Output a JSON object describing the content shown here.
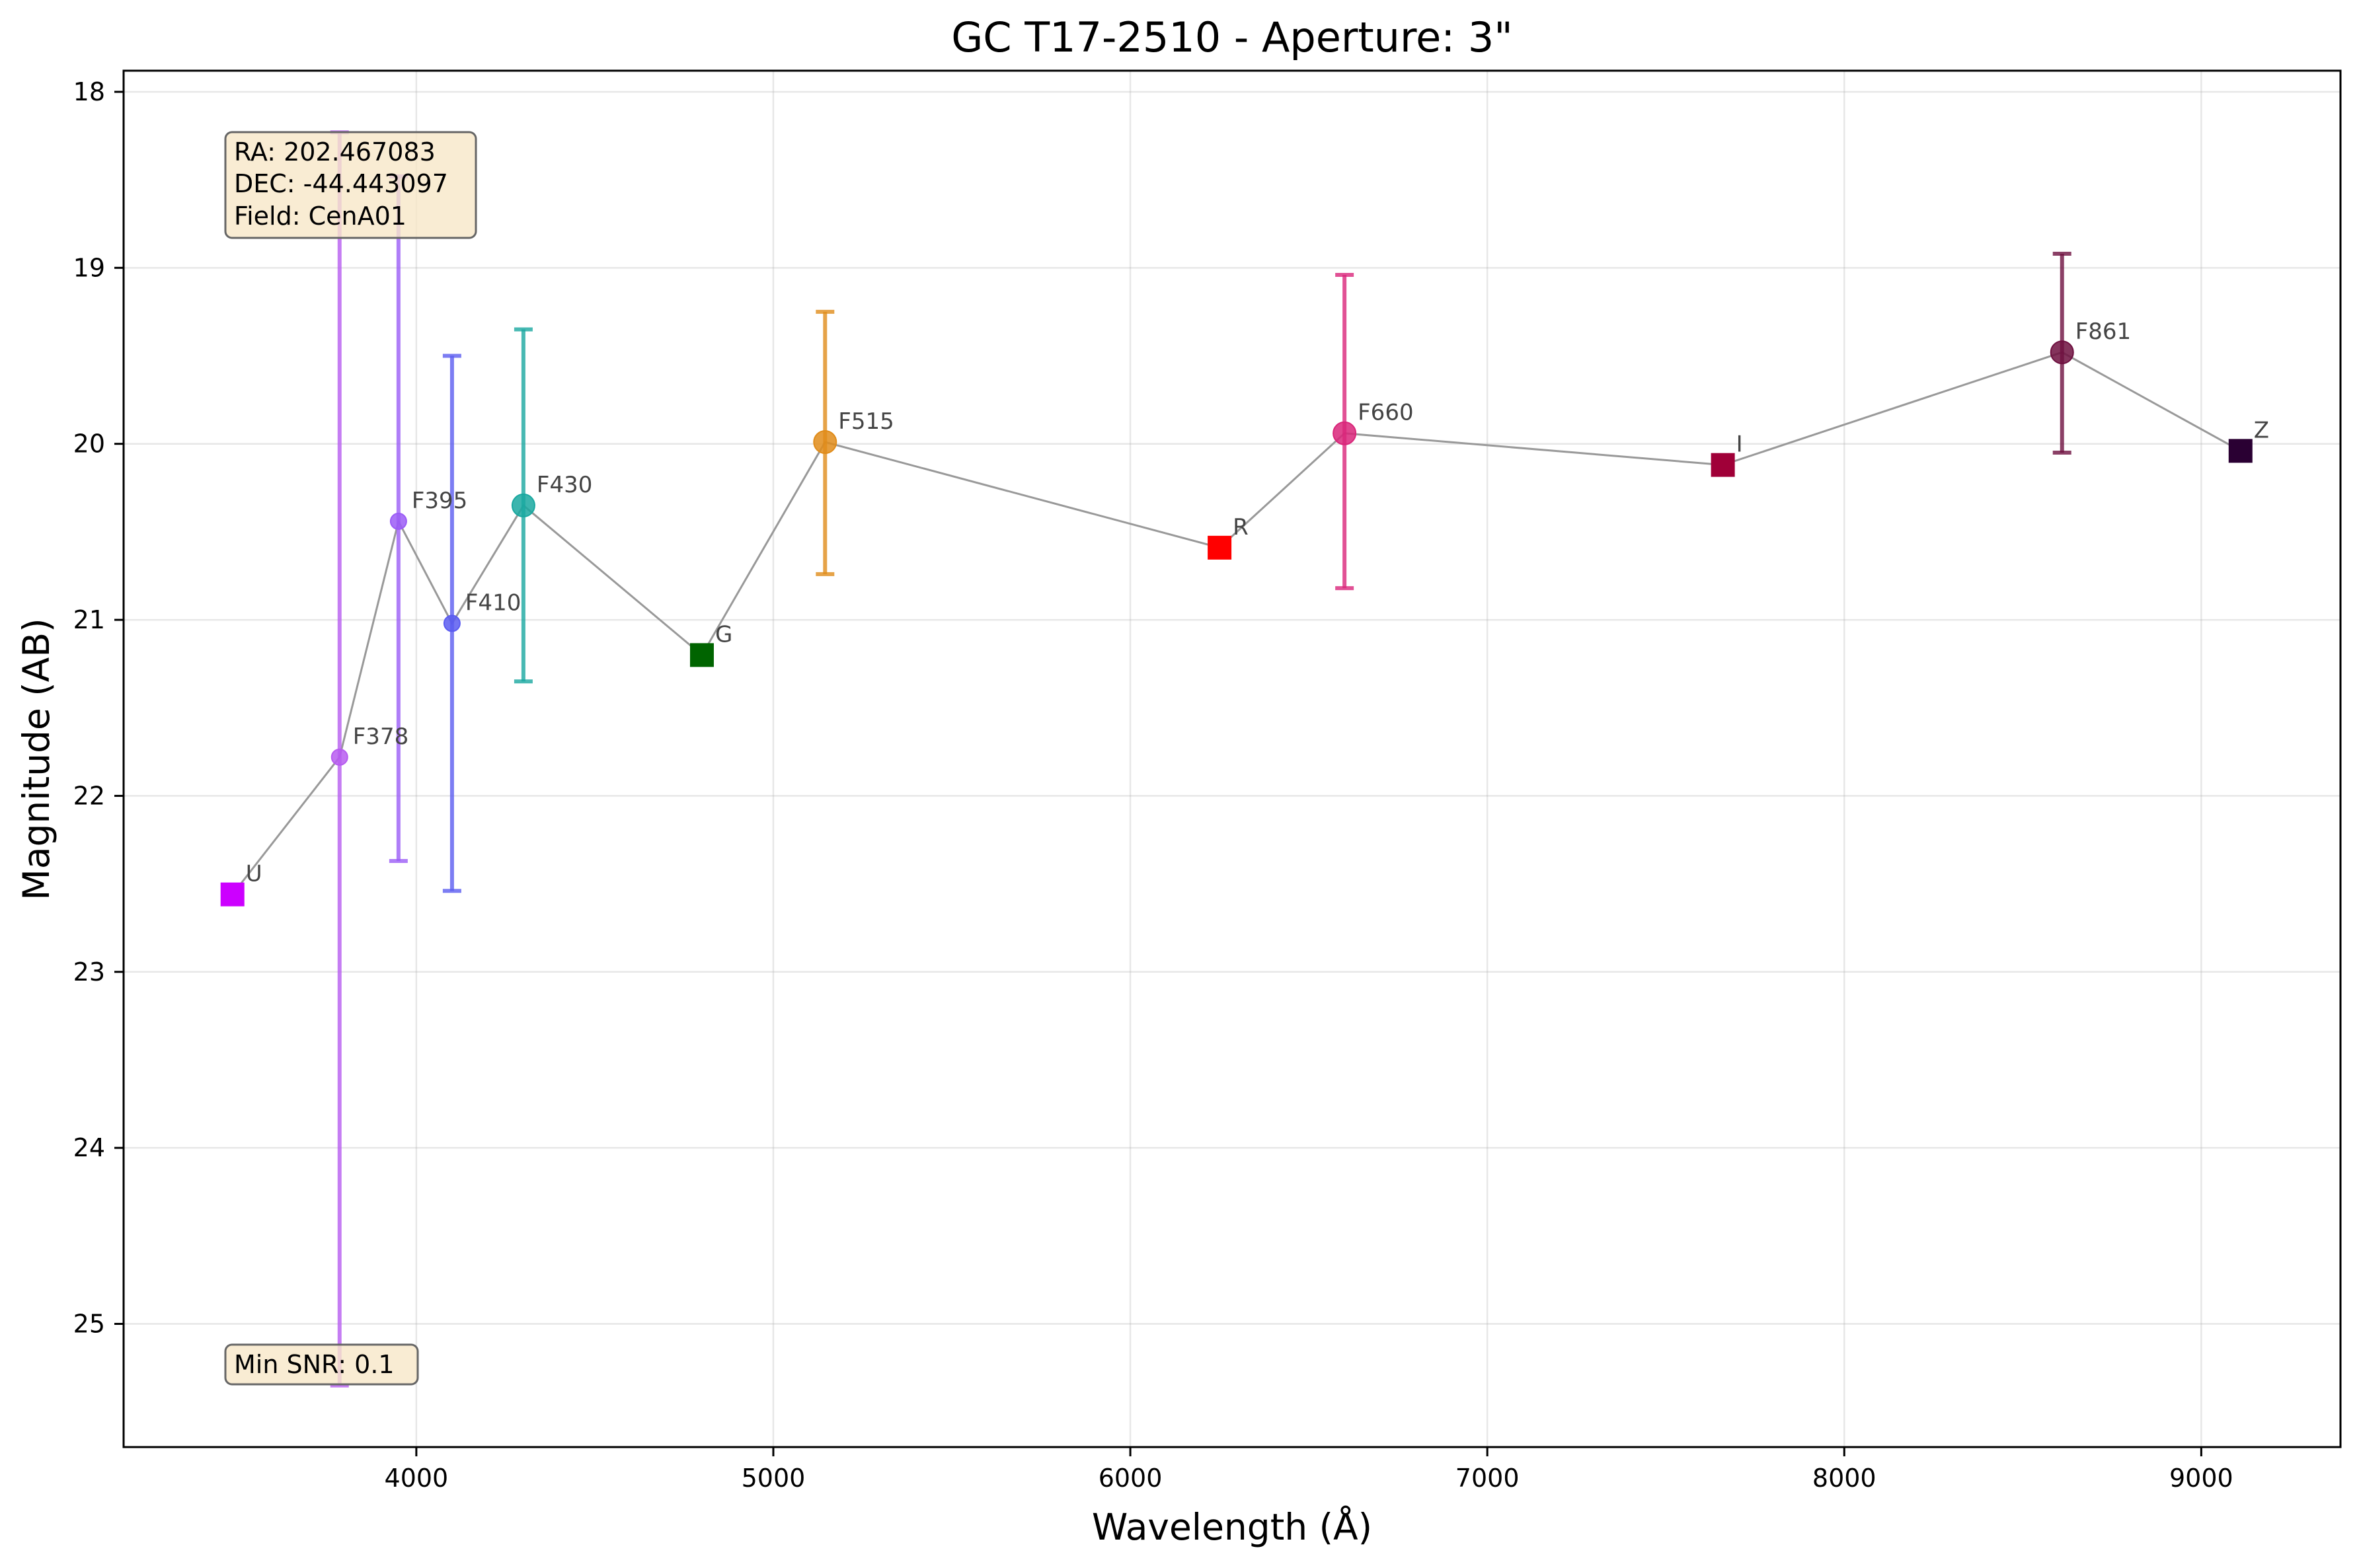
{
  "chart_data": {
    "type": "scatter",
    "title": "GC T17-2510 - Aperture: 3\"",
    "xlabel": "Wavelength (Å)",
    "ylabel": "Magnitude (AB)",
    "xlim": [
      3180,
      9390
    ],
    "ylim": [
      25.7,
      17.88
    ],
    "y_inverted": true,
    "grid": true,
    "x_ticks": [
      4000,
      5000,
      6000,
      7000,
      8000,
      9000
    ],
    "y_ticks": [
      18,
      19,
      20,
      21,
      22,
      23,
      24,
      25
    ],
    "connecting_line_color": "#999999",
    "points": [
      {
        "label": "U",
        "x": 3485,
        "y": 22.56,
        "yerr_low": null,
        "yerr_high": null,
        "marker": "square",
        "color": "#cc00ff"
      },
      {
        "label": "F378",
        "x": 3785,
        "y": 21.78,
        "yerr_low": 18.23,
        "yerr_high": 25.35,
        "marker": "circle",
        "color": "#b75cf0",
        "size": "small"
      },
      {
        "label": "F395",
        "x": 3950,
        "y": 20.44,
        "yerr_low": 18.48,
        "yerr_high": 22.37,
        "marker": "circle",
        "color": "#9b5cf6",
        "size": "small"
      },
      {
        "label": "F410",
        "x": 4100,
        "y": 21.02,
        "yerr_low": 19.5,
        "yerr_high": 22.54,
        "marker": "circle",
        "color": "#5b5cf0",
        "size": "small"
      },
      {
        "label": "F430",
        "x": 4300,
        "y": 20.35,
        "yerr_low": 19.35,
        "yerr_high": 21.35,
        "marker": "circle",
        "color": "#1aa8a0",
        "size": "large"
      },
      {
        "label": "G",
        "x": 4800,
        "y": 21.2,
        "yerr_low": null,
        "yerr_high": null,
        "marker": "square",
        "color": "#006400"
      },
      {
        "label": "F515",
        "x": 5145,
        "y": 19.99,
        "yerr_low": 19.25,
        "yerr_high": 20.74,
        "marker": "circle",
        "color": "#e08c1a",
        "size": "large"
      },
      {
        "label": "R",
        "x": 6250,
        "y": 20.59,
        "yerr_low": null,
        "yerr_high": null,
        "marker": "square",
        "color": "#ff0000"
      },
      {
        "label": "F660",
        "x": 6600,
        "y": 19.94,
        "yerr_low": 19.04,
        "yerr_high": 20.82,
        "marker": "circle",
        "color": "#d9267a",
        "size": "large"
      },
      {
        "label": "I",
        "x": 7660,
        "y": 20.12,
        "yerr_low": null,
        "yerr_high": null,
        "marker": "square",
        "color": "#a00038"
      },
      {
        "label": "F861",
        "x": 8610,
        "y": 19.48,
        "yerr_low": 18.92,
        "yerr_high": 20.05,
        "marker": "circle",
        "color": "#6e1040",
        "size": "large"
      },
      {
        "label": "Z",
        "x": 9110,
        "y": 20.04,
        "yerr_low": null,
        "yerr_high": null,
        "marker": "square",
        "color": "#2a0033"
      }
    ],
    "info_box": [
      "RA: 202.467083",
      "DEC: -44.443097",
      "Field: CenA01"
    ],
    "snr_box": "Min SNR: 0.1"
  }
}
